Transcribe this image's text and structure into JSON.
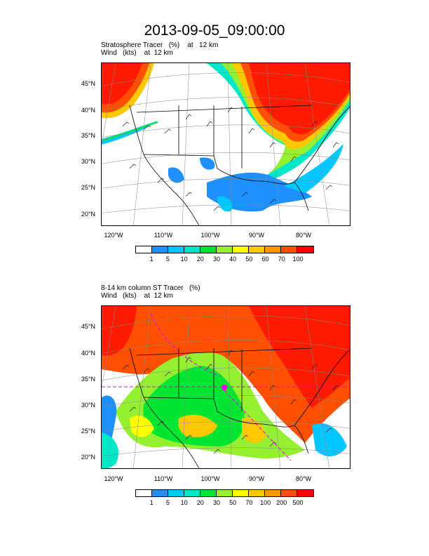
{
  "title": "2013-09-05_09:00:00",
  "panels": [
    {
      "subtitle_line1": "Stratosphere Tracer   (%)    at   12 km",
      "subtitle_line2": "Wind   (kts)    at  12 km",
      "lat_labels": [
        "45°N",
        "40°N",
        "35°N",
        "30°N",
        "25°N",
        "20°N"
      ],
      "lon_labels": [
        "120°W",
        "110°W",
        "100°W",
        "90°W",
        "80°W"
      ],
      "colorbar_labels": [
        "1",
        "5",
        "10",
        "20",
        "30",
        "40",
        "50",
        "60",
        "70",
        "100"
      ]
    },
    {
      "subtitle_line1": "8-14 km column ST Tracer   (%)",
      "subtitle_line2": "Wind   (kts)    at  12 km",
      "lat_labels": [
        "45°N",
        "40°N",
        "35°N",
        "30°N",
        "25°N",
        "20°N"
      ],
      "lon_labels": [
        "120°W",
        "110°W",
        "100°W",
        "90°W",
        "80°W"
      ],
      "colorbar_labels": [
        "1",
        "5",
        "10",
        "20",
        "30",
        "50",
        "70",
        "100",
        "200",
        "500"
      ]
    }
  ],
  "colorbar_colors": [
    "#ffffff",
    "#1e90ff",
    "#00c8ff",
    "#00e6c8",
    "#00e632",
    "#96f032",
    "#ffff00",
    "#ffc800",
    "#ff9600",
    "#ff5000",
    "#ff0000"
  ]
}
